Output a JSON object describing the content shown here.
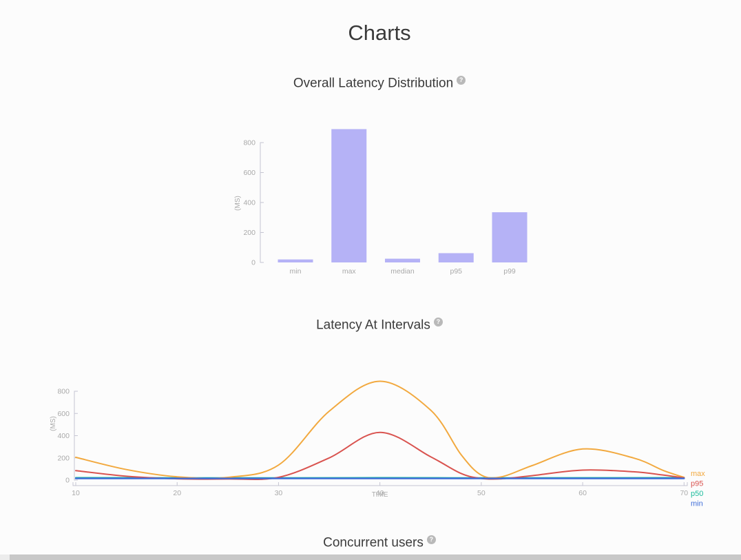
{
  "page": {
    "title": "Charts",
    "background": "#fcfcfc"
  },
  "sections": [
    {
      "id": "overall-latency",
      "title": "Overall Latency Distribution",
      "help": "?"
    },
    {
      "id": "latency-intervals",
      "title": "Latency At Intervals",
      "help": "?"
    },
    {
      "id": "concurrent-users",
      "title": "Concurrent users",
      "help": "?"
    }
  ],
  "colors": {
    "bar_fill": "#b5b2f6",
    "axis": "#c5c5d2",
    "tick_text": "#a9a9a9",
    "heading": "#3b3b3b",
    "series_max": "#f2a93f",
    "series_p95": "#d9534f",
    "series_p50": "#1abc9c",
    "series_min": "#3e6dd8"
  },
  "chart_data": [
    {
      "type": "bar",
      "title": "Overall Latency Distribution",
      "categories": [
        "min",
        "max",
        "median",
        "p95",
        "p99"
      ],
      "values": [
        20,
        890,
        25,
        62,
        335
      ],
      "xlabel": "",
      "ylabel": "(MS)",
      "yticks": [
        0,
        200,
        400,
        600,
        800
      ],
      "ylim": [
        0,
        800
      ],
      "grid": false,
      "legend": false,
      "bar_color": "#b5b2f6",
      "axis_color": "#c5c5d2",
      "tick_text_color": "#a9a9a9"
    },
    {
      "type": "line",
      "title": "Latency At Intervals",
      "xlabel": "TIME",
      "ylabel": "(MS)",
      "xlim": [
        10,
        70
      ],
      "ylim": [
        0,
        800
      ],
      "xticks": [
        10,
        20,
        30,
        40,
        50,
        60,
        70
      ],
      "yticks": [
        0,
        200,
        400,
        600,
        800
      ],
      "grid": false,
      "legend_position": "right-edge-labels",
      "axis_color": "#c5c5d2",
      "tick_text_color": "#a9a9a9",
      "series": [
        {
          "name": "max",
          "color": "#f2a93f",
          "points": [
            [
              10,
              205
            ],
            [
              15,
              95
            ],
            [
              20,
              30
            ],
            [
              25,
              25
            ],
            [
              30,
              135
            ],
            [
              35,
              620
            ],
            [
              40,
              890
            ],
            [
              45,
              630
            ],
            [
              48,
              230
            ],
            [
              50,
              45
            ],
            [
              52,
              30
            ],
            [
              55,
              130
            ],
            [
              60,
              280
            ],
            [
              65,
              200
            ],
            [
              68,
              85
            ],
            [
              70,
              25
            ]
          ]
        },
        {
          "name": "p95",
          "color": "#d9534f",
          "points": [
            [
              10,
              85
            ],
            [
              15,
              35
            ],
            [
              20,
              12
            ],
            [
              25,
              10
            ],
            [
              30,
              25
            ],
            [
              35,
              200
            ],
            [
              40,
              430
            ],
            [
              45,
              210
            ],
            [
              48,
              60
            ],
            [
              50,
              15
            ],
            [
              52,
              12
            ],
            [
              55,
              40
            ],
            [
              60,
              90
            ],
            [
              65,
              75
            ],
            [
              68,
              45
            ],
            [
              70,
              20
            ]
          ]
        },
        {
          "name": "p50",
          "color": "#1abc9c",
          "points": [
            [
              10,
              22
            ],
            [
              20,
              20
            ],
            [
              30,
              20
            ],
            [
              40,
              22
            ],
            [
              50,
              20
            ],
            [
              60,
              21
            ],
            [
              70,
              22
            ]
          ]
        },
        {
          "name": "min",
          "color": "#3e6dd8",
          "points": [
            [
              10,
              15
            ],
            [
              20,
              15
            ],
            [
              30,
              15
            ],
            [
              40,
              15
            ],
            [
              50,
              15
            ],
            [
              60,
              15
            ],
            [
              70,
              15
            ]
          ]
        }
      ]
    }
  ],
  "scrollbar": {
    "orientation": "horizontal"
  }
}
